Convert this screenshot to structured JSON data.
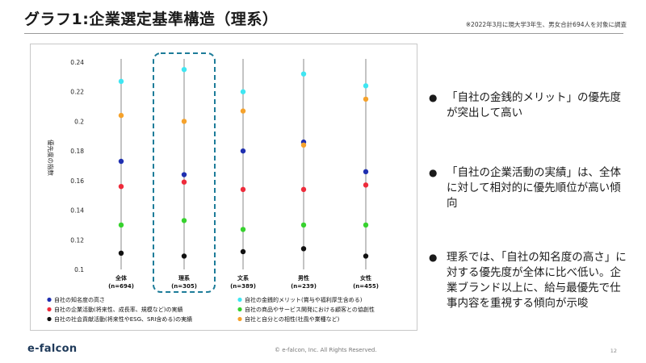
{
  "page": {
    "title": "グラフ1:企業選定基準構造（理系）",
    "survey_note": "※2022年3月に現大学3年生、男女合計694人を対象に調査",
    "brand": "e-falcon",
    "copyright": "© e-falcon, Inc. All Rights Reserved.",
    "page_number": "12"
  },
  "bullets": [
    "「自社の金銭的メリット」の優先度が突出して高い",
    "「自社の企業活動の実績」は、全体に対して相対的に優先順位が高い傾向",
    "理系では、「自社の知名度の高さ」に対する優先度が全体に比べ低い。企業ブランド以上に、給与最優先で仕事内容を重視する傾向が示唆"
  ],
  "chart_data": {
    "type": "scatter",
    "ylabel": "優先度の指数",
    "xlabel": "",
    "ylim": [
      0.1,
      0.24
    ],
    "yticks": [
      "0.1",
      "0.12",
      "0.14",
      "0.16",
      "0.18",
      "0.2",
      "0.22",
      "0.24"
    ],
    "grid": false,
    "legend_position": "bottom",
    "highlighted_category": "理系",
    "categories": [
      {
        "name": "全体",
        "n": "(n=694)"
      },
      {
        "name": "理系",
        "n": "(n=305)"
      },
      {
        "name": "文系",
        "n": "(n=389)"
      },
      {
        "name": "男性",
        "n": "(n=239)"
      },
      {
        "name": "女性",
        "n": "(n=455)"
      }
    ],
    "series": [
      {
        "name": "自社の知名度の高さ",
        "color": "#1f2fb0",
        "values": [
          0.173,
          0.164,
          0.18,
          0.186,
          0.166
        ]
      },
      {
        "name": "自社の金銭的メリット(賞与や福利厚生含める)",
        "color": "#3fe6f2",
        "values": [
          0.227,
          0.235,
          0.22,
          0.232,
          0.224
        ]
      },
      {
        "name": "自社の企業活動(将来性、成長率、規模など)の実績",
        "color": "#ee2b3b",
        "values": [
          0.156,
          0.159,
          0.154,
          0.154,
          0.157
        ]
      },
      {
        "name": "自社の商品やサービス開発における顧客との協創性",
        "color": "#37d22e",
        "values": [
          0.13,
          0.133,
          0.127,
          0.13,
          0.13
        ]
      },
      {
        "name": "自社の社会貢献活動(将来性やESG、SRI含める)の実績",
        "color": "#111111",
        "values": [
          0.111,
          0.109,
          0.112,
          0.114,
          0.109
        ]
      },
      {
        "name": "自社と自分との相性(社風や業種など)",
        "color": "#f5a22c",
        "values": [
          0.204,
          0.2,
          0.207,
          0.184,
          0.215
        ]
      }
    ]
  }
}
